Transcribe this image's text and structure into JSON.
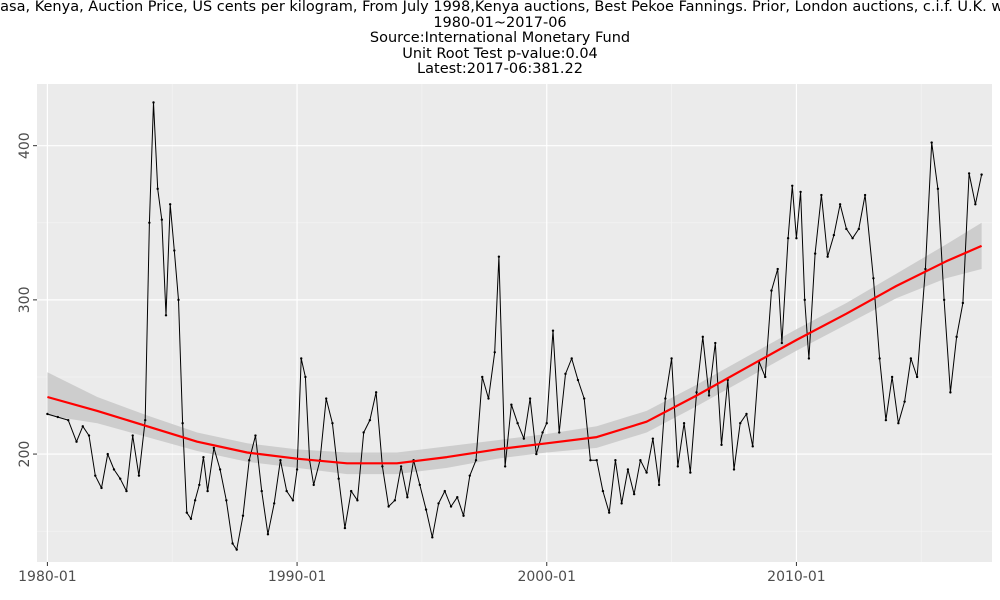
{
  "chart_data": {
    "type": "line",
    "title": "Tea, Mombasa, Kenya, Auction Price, US cents per kilogram, From July 1998,Kenya auctions, Best Pekoe Fannings. Prior, London auctions, c.i.f. U.K. warehouses",
    "subtitle_lines": [
      "1980-01~2017-06",
      "Source:International Monetary Fund",
      "Unit Root Test p-value:0.04",
      "Latest:2017-06:381.22"
    ],
    "xlabel": "",
    "ylabel": "",
    "x_ticks": [
      "1980-01",
      "1990-01",
      "2000-01",
      "2010-01"
    ],
    "y_ticks": [
      200,
      300,
      400
    ],
    "xlim": [
      "1979-08",
      "2017-11"
    ],
    "ylim": [
      130,
      440
    ],
    "grid": true,
    "background": "#ebebeb",
    "series": [
      {
        "color": "#000000",
        "points": [
          [
            "1980-01",
            226
          ],
          [
            "1980-06",
            224
          ],
          [
            "1980-11",
            222
          ],
          [
            "1981-03",
            208
          ],
          [
            "1981-06",
            218
          ],
          [
            "1981-09",
            212
          ],
          [
            "1981-12",
            186
          ],
          [
            "1982-03",
            178
          ],
          [
            "1982-06",
            200
          ],
          [
            "1982-09",
            190
          ],
          [
            "1982-12",
            184
          ],
          [
            "1983-03",
            176
          ],
          [
            "1983-06",
            212
          ],
          [
            "1983-09",
            186
          ],
          [
            "1983-12",
            222
          ],
          [
            "1984-02",
            350
          ],
          [
            "1984-04",
            428
          ],
          [
            "1984-06",
            372
          ],
          [
            "1984-08",
            352
          ],
          [
            "1984-10",
            290
          ],
          [
            "1984-12",
            362
          ],
          [
            "1985-02",
            332
          ],
          [
            "1985-04",
            300
          ],
          [
            "1985-06",
            220
          ],
          [
            "1985-08",
            162
          ],
          [
            "1985-10",
            158
          ],
          [
            "1985-12",
            170
          ],
          [
            "1986-02",
            180
          ],
          [
            "1986-04",
            198
          ],
          [
            "1986-06",
            176
          ],
          [
            "1986-09",
            204
          ],
          [
            "1986-12",
            190
          ],
          [
            "1987-03",
            170
          ],
          [
            "1987-06",
            142
          ],
          [
            "1987-08",
            138
          ],
          [
            "1987-11",
            160
          ],
          [
            "1988-02",
            196
          ],
          [
            "1988-05",
            212
          ],
          [
            "1988-08",
            176
          ],
          [
            "1988-11",
            148
          ],
          [
            "1989-02",
            168
          ],
          [
            "1989-05",
            196
          ],
          [
            "1989-08",
            176
          ],
          [
            "1989-11",
            170
          ],
          [
            "1990-01",
            190
          ],
          [
            "1990-03",
            262
          ],
          [
            "1990-05",
            250
          ],
          [
            "1990-07",
            196
          ],
          [
            "1990-09",
            180
          ],
          [
            "1990-12",
            196
          ],
          [
            "1991-03",
            236
          ],
          [
            "1991-06",
            220
          ],
          [
            "1991-09",
            184
          ],
          [
            "1991-12",
            152
          ],
          [
            "1992-03",
            176
          ],
          [
            "1992-06",
            170
          ],
          [
            "1992-09",
            214
          ],
          [
            "1992-12",
            222
          ],
          [
            "1993-03",
            240
          ],
          [
            "1993-06",
            192
          ],
          [
            "1993-09",
            166
          ],
          [
            "1993-12",
            170
          ],
          [
            "1994-03",
            192
          ],
          [
            "1994-06",
            172
          ],
          [
            "1994-09",
            196
          ],
          [
            "1994-12",
            180
          ],
          [
            "1995-03",
            164
          ],
          [
            "1995-06",
            146
          ],
          [
            "1995-09",
            168
          ],
          [
            "1995-12",
            176
          ],
          [
            "1996-03",
            166
          ],
          [
            "1996-06",
            172
          ],
          [
            "1996-09",
            160
          ],
          [
            "1996-12",
            186
          ],
          [
            "1997-03",
            196
          ],
          [
            "1997-06",
            250
          ],
          [
            "1997-09",
            236
          ],
          [
            "1997-12",
            266
          ],
          [
            "1998-02",
            328
          ],
          [
            "1998-05",
            192
          ],
          [
            "1998-08",
            232
          ],
          [
            "1998-11",
            220
          ],
          [
            "1999-02",
            210
          ],
          [
            "1999-05",
            236
          ],
          [
            "1999-08",
            200
          ],
          [
            "1999-11",
            214
          ],
          [
            "2000-01",
            220
          ],
          [
            "2000-04",
            280
          ],
          [
            "2000-07",
            214
          ],
          [
            "2000-10",
            252
          ],
          [
            "2001-01",
            262
          ],
          [
            "2001-04",
            248
          ],
          [
            "2001-07",
            236
          ],
          [
            "2001-10",
            196
          ],
          [
            "2002-01",
            196
          ],
          [
            "2002-04",
            176
          ],
          [
            "2002-07",
            162
          ],
          [
            "2002-10",
            196
          ],
          [
            "2003-01",
            168
          ],
          [
            "2003-04",
            190
          ],
          [
            "2003-07",
            174
          ],
          [
            "2003-10",
            196
          ],
          [
            "2004-01",
            188
          ],
          [
            "2004-04",
            210
          ],
          [
            "2004-07",
            180
          ],
          [
            "2004-10",
            236
          ],
          [
            "2005-01",
            262
          ],
          [
            "2005-04",
            192
          ],
          [
            "2005-07",
            220
          ],
          [
            "2005-10",
            188
          ],
          [
            "2006-01",
            240
          ],
          [
            "2006-04",
            276
          ],
          [
            "2006-07",
            238
          ],
          [
            "2006-10",
            272
          ],
          [
            "2007-01",
            206
          ],
          [
            "2007-04",
            248
          ],
          [
            "2007-07",
            190
          ],
          [
            "2007-10",
            220
          ],
          [
            "2008-01",
            226
          ],
          [
            "2008-04",
            205
          ],
          [
            "2008-07",
            260
          ],
          [
            "2008-10",
            250
          ],
          [
            "2009-01",
            306
          ],
          [
            "2009-04",
            320
          ],
          [
            "2009-06",
            272
          ],
          [
            "2009-09",
            340
          ],
          [
            "2009-11",
            374
          ],
          [
            "2010-01",
            340
          ],
          [
            "2010-03",
            370
          ],
          [
            "2010-05",
            300
          ],
          [
            "2010-07",
            262
          ],
          [
            "2010-10",
            330
          ],
          [
            "2011-01",
            368
          ],
          [
            "2011-04",
            328
          ],
          [
            "2011-07",
            342
          ],
          [
            "2011-10",
            362
          ],
          [
            "2012-01",
            346
          ],
          [
            "2012-04",
            340
          ],
          [
            "2012-07",
            346
          ],
          [
            "2012-10",
            368
          ],
          [
            "2013-02",
            314
          ],
          [
            "2013-05",
            262
          ],
          [
            "2013-08",
            222
          ],
          [
            "2013-11",
            250
          ],
          [
            "2014-02",
            220
          ],
          [
            "2014-05",
            234
          ],
          [
            "2014-08",
            262
          ],
          [
            "2014-11",
            250
          ],
          [
            "2015-03",
            320
          ],
          [
            "2015-06",
            402
          ],
          [
            "2015-09",
            372
          ],
          [
            "2015-12",
            300
          ],
          [
            "2016-03",
            240
          ],
          [
            "2016-06",
            276
          ],
          [
            "2016-09",
            298
          ],
          [
            "2016-12",
            382
          ],
          [
            "2017-03",
            362
          ],
          [
            "2017-06",
            381.22
          ]
        ]
      },
      {
        "color": "#ff0000",
        "points": [
          [
            "1980-01",
            237
          ],
          [
            "1982-01",
            228
          ],
          [
            "1984-01",
            218
          ],
          [
            "1986-01",
            208
          ],
          [
            "1988-01",
            201
          ],
          [
            "1990-01",
            197
          ],
          [
            "1992-01",
            194
          ],
          [
            "1994-01",
            194
          ],
          [
            "1996-01",
            198
          ],
          [
            "1998-01",
            203
          ],
          [
            "2000-01",
            207
          ],
          [
            "2002-01",
            211
          ],
          [
            "2004-01",
            221
          ],
          [
            "2006-01",
            238
          ],
          [
            "2008-01",
            256
          ],
          [
            "2010-01",
            274
          ],
          [
            "2012-01",
            291
          ],
          [
            "2014-01",
            309
          ],
          [
            "2016-01",
            325
          ],
          [
            "2017-06",
            335
          ]
        ]
      }
    ],
    "confidence_band": {
      "color": "#c8c8c8",
      "points": [
        [
          "1980-01",
          225,
          253
        ],
        [
          "1982-01",
          220,
          237
        ],
        [
          "1984-01",
          211,
          225
        ],
        [
          "1986-01",
          202,
          214
        ],
        [
          "1988-01",
          195,
          207
        ],
        [
          "1990-01",
          191,
          203
        ],
        [
          "1992-01",
          187,
          201
        ],
        [
          "1994-01",
          187,
          201
        ],
        [
          "1996-01",
          191,
          205
        ],
        [
          "1998-01",
          197,
          209
        ],
        [
          "2000-01",
          201,
          213
        ],
        [
          "2002-01",
          204,
          218
        ],
        [
          "2004-01",
          214,
          228
        ],
        [
          "2006-01",
          231,
          245
        ],
        [
          "2008-01",
          249,
          263
        ],
        [
          "2010-01",
          267,
          281
        ],
        [
          "2012-01",
          284,
          298
        ],
        [
          "2014-01",
          301,
          317
        ],
        [
          "2016-01",
          314,
          336
        ],
        [
          "2017-06",
          320,
          350
        ]
      ]
    }
  }
}
